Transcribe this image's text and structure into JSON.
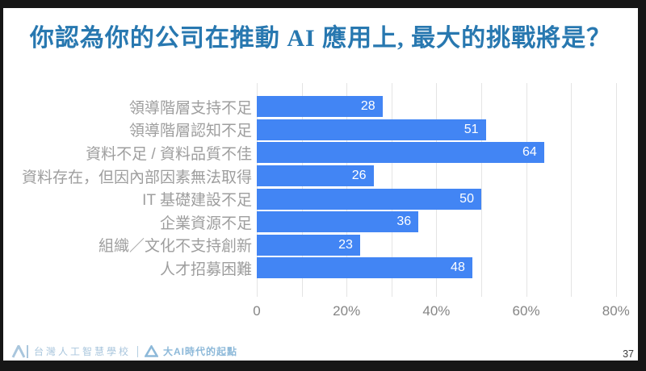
{
  "slide": {
    "title": "你認為你的公司在推動 AI 應用上, 最大的挑戰將是？",
    "page_number": "37"
  },
  "chart_data": {
    "type": "bar",
    "orientation": "horizontal",
    "categories": [
      "領導階層支持不足",
      "領導階層認知不足",
      "資料不足 / 資料品質不佳",
      "資料存在，但因內部因素無法取得",
      "IT 基礎建設不足",
      "企業資源不足",
      "組織／文化不支持創新",
      "人才招募困難"
    ],
    "values": [
      28,
      51,
      64,
      26,
      50,
      36,
      23,
      48
    ],
    "value_unit": "percent",
    "xlabel": "",
    "ylabel": "",
    "xlim": [
      0,
      84
    ],
    "x_tick_values": [
      0,
      20,
      40,
      60,
      80
    ],
    "x_tick_labels": [
      "0",
      "20%",
      "40%",
      "60%",
      "80%"
    ],
    "gridline_step": 10,
    "grid": true,
    "legend_position": "none",
    "bar_color": "#4285f4",
    "value_label_color": "#ffffff",
    "category_label_color": "#9e9e9e"
  },
  "footer": {
    "org_name": "台灣人工智慧學校",
    "tagline": "大AI時代的起點",
    "org_logo_icon": "taiwan-ai-academy-logo",
    "tagline_logo_icon": "ai-era-triangle-logo"
  },
  "colors": {
    "title": "#2878b0",
    "frame": "#161616",
    "slide_bg": "#ffffff",
    "footer_primary": "#a9c6dd",
    "footer_accent": "#8db9d9"
  }
}
